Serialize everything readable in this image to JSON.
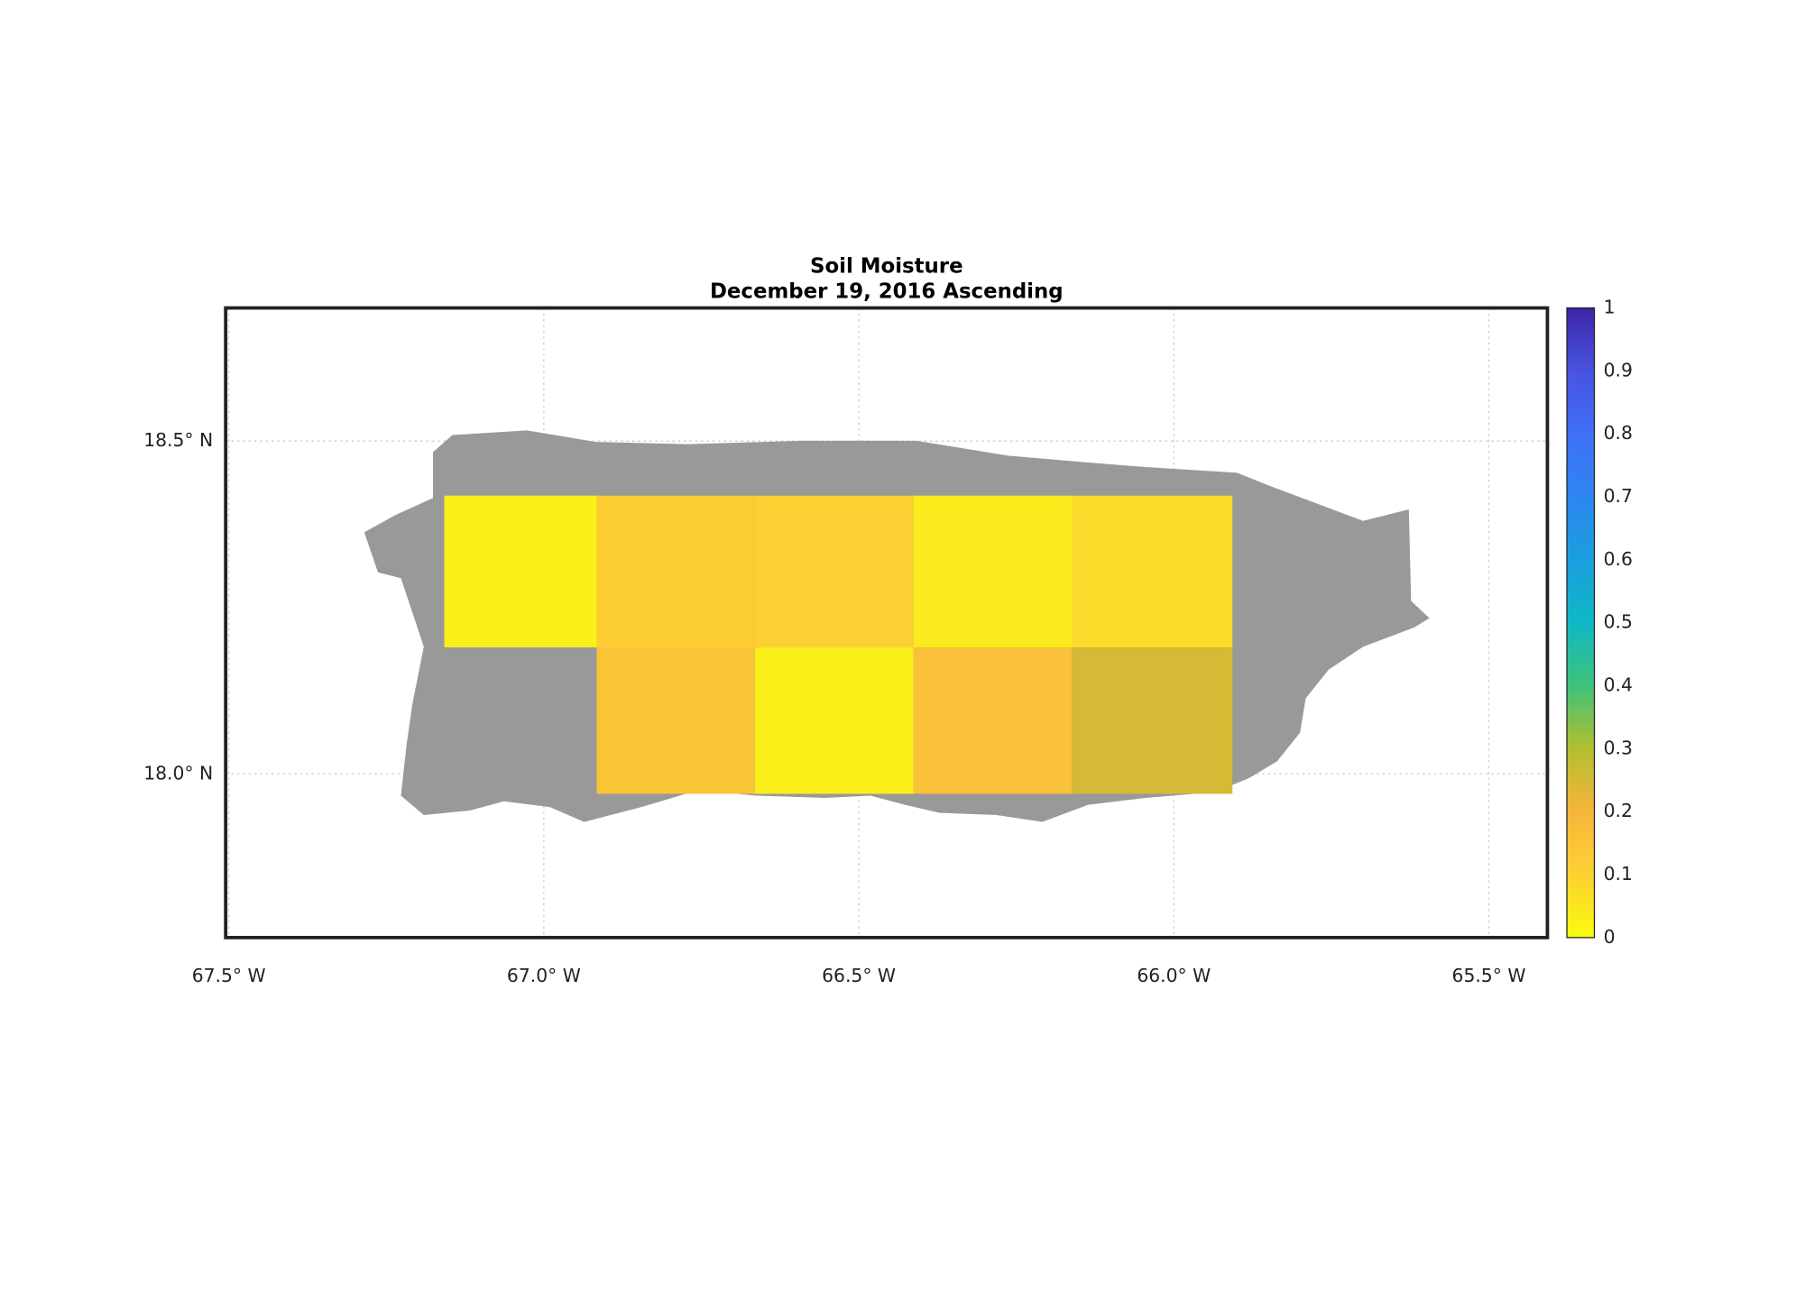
{
  "chart_data": {
    "type": "heatmap",
    "title": "Soil Moisture",
    "subtitle": "December 19, 2016 Ascending",
    "xlim": [
      -67.505,
      -65.407
    ],
    "ylim": [
      17.754,
      18.7
    ],
    "xticks": [
      {
        "value": -67.5,
        "label": "67.5° W"
      },
      {
        "value": -67.0,
        "label": "67.0° W"
      },
      {
        "value": -66.5,
        "label": "66.5° W"
      },
      {
        "value": -66.0,
        "label": "66.0° W"
      },
      {
        "value": -65.5,
        "label": "65.5° W"
      }
    ],
    "yticks": [
      {
        "value": 18.0,
        "label": "18.0° N"
      },
      {
        "value": 18.5,
        "label": "18.5° N"
      }
    ],
    "grid": true,
    "lon_edges": [
      -67.158,
      -66.916,
      -66.665,
      -66.413,
      -66.162,
      -65.907
    ],
    "lat_edges": [
      18.418,
      18.19,
      17.97
    ],
    "values": [
      [
        0.03,
        0.12,
        0.11,
        0.04,
        0.08
      ],
      [
        null,
        0.15,
        0.03,
        0.16,
        0.25
      ]
    ],
    "clim": [
      0,
      1
    ],
    "colorbar_ticks": [
      0,
      0.1,
      0.2,
      0.3,
      0.4,
      0.5,
      0.6,
      0.7,
      0.8,
      0.9,
      1
    ],
    "colormap": [
      "#f9fb0e",
      "#fcd231",
      "#f7b53c",
      "#b3bf2e",
      "#3fc27a",
      "#0fb8c6",
      "#1a9fdd",
      "#2d85f0",
      "#4070f8",
      "#4853e0",
      "#3e26a8"
    ],
    "land_color": "#999999"
  }
}
